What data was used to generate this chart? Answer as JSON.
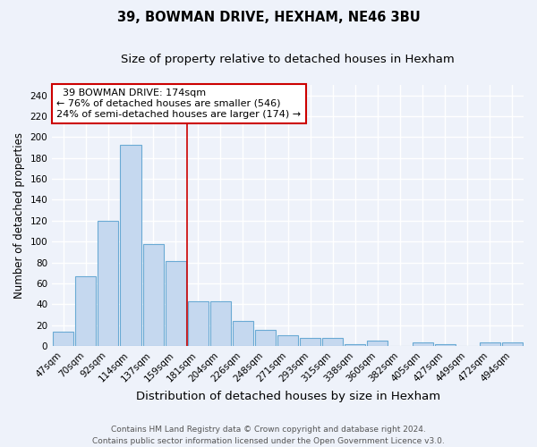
{
  "title": "39, BOWMAN DRIVE, HEXHAM, NE46 3BU",
  "subtitle": "Size of property relative to detached houses in Hexham",
  "xlabel": "Distribution of detached houses by size in Hexham",
  "ylabel": "Number of detached properties",
  "categories": [
    "47sqm",
    "70sqm",
    "92sqm",
    "114sqm",
    "137sqm",
    "159sqm",
    "181sqm",
    "204sqm",
    "226sqm",
    "248sqm",
    "271sqm",
    "293sqm",
    "315sqm",
    "338sqm",
    "360sqm",
    "382sqm",
    "405sqm",
    "427sqm",
    "449sqm",
    "472sqm",
    "494sqm"
  ],
  "values": [
    14,
    67,
    120,
    193,
    98,
    81,
    43,
    43,
    24,
    15,
    10,
    8,
    8,
    2,
    5,
    0,
    3,
    2,
    0,
    3,
    3
  ],
  "bar_color": "#c5d8ef",
  "bar_edge_color": "#6aaad4",
  "vline_x_index": 6.0,
  "vline_color": "#cc0000",
  "annotation_text": "  39 BOWMAN DRIVE: 174sqm\n← 76% of detached houses are smaller (546)\n24% of semi-detached houses are larger (174) →",
  "annotation_box_color": "#ffffff",
  "annotation_box_edge": "#cc0000",
  "ylim": [
    0,
    250
  ],
  "yticks": [
    0,
    20,
    40,
    60,
    80,
    100,
    120,
    140,
    160,
    180,
    200,
    220,
    240
  ],
  "bg_color": "#eef2fa",
  "grid_color": "#ffffff",
  "footer": "Contains HM Land Registry data © Crown copyright and database right 2024.\nContains public sector information licensed under the Open Government Licence v3.0.",
  "title_fontsize": 10.5,
  "subtitle_fontsize": 9.5,
  "xlabel_fontsize": 9.5,
  "ylabel_fontsize": 8.5,
  "tick_fontsize": 7.5,
  "annotation_fontsize": 8,
  "footer_fontsize": 6.5
}
